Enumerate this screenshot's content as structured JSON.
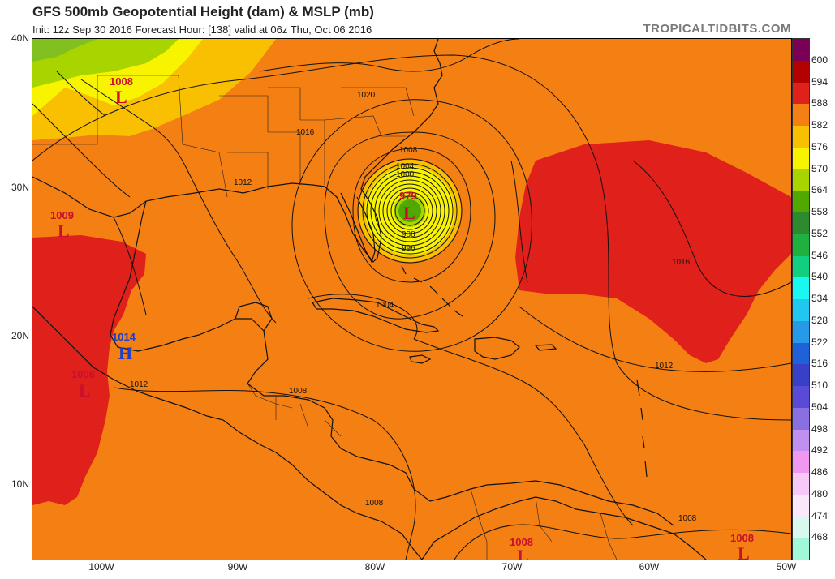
{
  "header": {
    "title": "GFS 500mb Geopotential Height (dam) & MSLP (mb)",
    "subtitle": "Init: 12z Sep 30 2016   Forecast Hour: [138]   valid at 06z Thu, Oct 06 2016",
    "brand": "TROPICALTIDBITS.COM"
  },
  "axes": {
    "lat_labels": [
      "40N",
      "30N",
      "20N",
      "10N"
    ],
    "lon_labels": [
      "100W",
      "90W",
      "80W",
      "70W",
      "60W",
      "50W"
    ]
  },
  "colorbar": {
    "labels": [
      "600",
      "594",
      "588",
      "582",
      "576",
      "570",
      "564",
      "558",
      "552",
      "546",
      "540",
      "534",
      "528",
      "522",
      "516",
      "510",
      "504",
      "498",
      "492",
      "486",
      "480",
      "474",
      "468"
    ],
    "colors": [
      "#7a0055",
      "#b30000",
      "#e0201a",
      "#f47f12",
      "#f8c000",
      "#f8f400",
      "#a8d400",
      "#50a800",
      "#2e8a2e",
      "#20b040",
      "#10d080",
      "#18f8f0",
      "#20c8f0",
      "#2898e8",
      "#2060d8",
      "#3840c8",
      "#5a4ad8",
      "#8870e0",
      "#c090f0",
      "#f098f0",
      "#f8c8f8",
      "#f8e8f8",
      "#d8f8f0",
      "#a0f8d8"
    ]
  },
  "pressure_systems": [
    {
      "value": "1008",
      "letter": "L",
      "type": "low"
    },
    {
      "value": "1009",
      "letter": "L",
      "type": "low"
    },
    {
      "value": "1014",
      "letter": "H",
      "type": "high"
    },
    {
      "value": "1008",
      "letter": "L",
      "type": "low"
    },
    {
      "value": "979",
      "letter": "L",
      "type": "low"
    },
    {
      "value": "1008",
      "letter": "L",
      "type": "low"
    },
    {
      "value": "1008",
      "letter": "L",
      "type": "low"
    }
  ],
  "isobar_labels": [
    "1020",
    "1016",
    "1012",
    "1008",
    "1004",
    "1000",
    "988",
    "996",
    "1004",
    "1016",
    "1012",
    "1012",
    "1008",
    "1008",
    "1008"
  ]
}
